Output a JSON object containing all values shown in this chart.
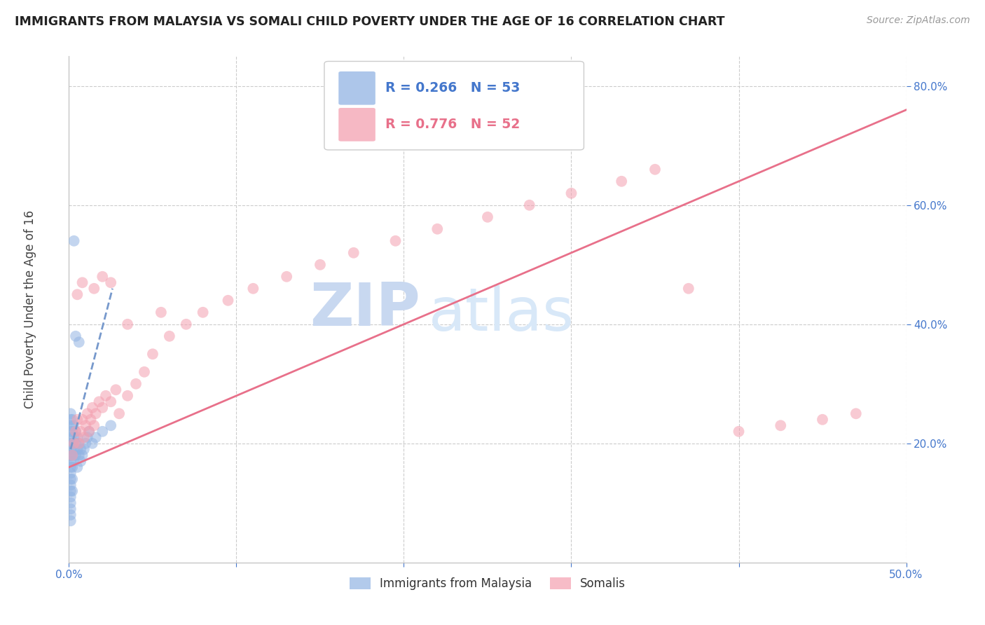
{
  "title": "IMMIGRANTS FROM MALAYSIA VS SOMALI CHILD POVERTY UNDER THE AGE OF 16 CORRELATION CHART",
  "source": "Source: ZipAtlas.com",
  "ylabel": "Child Poverty Under the Age of 16",
  "xlim": [
    0.0,
    0.5
  ],
  "ylim": [
    0.0,
    0.85
  ],
  "xticks": [
    0.0,
    0.1,
    0.2,
    0.3,
    0.4,
    0.5
  ],
  "xticklabels": [
    "0.0%",
    "",
    "",
    "",
    "",
    "50.0%"
  ],
  "yticks": [
    0.2,
    0.4,
    0.6,
    0.8
  ],
  "yticklabels": [
    "20.0%",
    "40.0%",
    "60.0%",
    "80.0%"
  ],
  "legend_r_malaysia": "R = 0.266",
  "legend_n_malaysia": "N = 53",
  "legend_r_somali": "R = 0.776",
  "legend_n_somali": "N = 52",
  "malaysia_color": "#92b4e3",
  "somali_color": "#f4a0b0",
  "malaysia_line_color": "#7799cc",
  "somali_line_color": "#e8708a",
  "grid_color": "#cccccc",
  "axis_color": "#bbbbbb",
  "tick_color": "#4477cc",
  "title_color": "#222222",
  "watermark_zip_color": "#c8d8f0",
  "watermark_atlas_color": "#d8e8f8",
  "background_color": "#ffffff",
  "malaysia_scatter_x": [
    0.001,
    0.001,
    0.001,
    0.001,
    0.001,
    0.001,
    0.001,
    0.001,
    0.001,
    0.001,
    0.001,
    0.001,
    0.001,
    0.001,
    0.001,
    0.001,
    0.001,
    0.001,
    0.001,
    0.001,
    0.002,
    0.002,
    0.002,
    0.002,
    0.002,
    0.002,
    0.002,
    0.003,
    0.003,
    0.003,
    0.003,
    0.004,
    0.004,
    0.004,
    0.005,
    0.005,
    0.005,
    0.006,
    0.006,
    0.007,
    0.007,
    0.008,
    0.009,
    0.01,
    0.011,
    0.012,
    0.014,
    0.016,
    0.02,
    0.025,
    0.003,
    0.004,
    0.006
  ],
  "malaysia_scatter_y": [
    0.15,
    0.16,
    0.17,
    0.18,
    0.18,
    0.19,
    0.2,
    0.21,
    0.22,
    0.23,
    0.24,
    0.25,
    0.14,
    0.13,
    0.12,
    0.11,
    0.1,
    0.09,
    0.08,
    0.07,
    0.16,
    0.18,
    0.2,
    0.22,
    0.24,
    0.14,
    0.12,
    0.17,
    0.19,
    0.21,
    0.23,
    0.18,
    0.2,
    0.22,
    0.16,
    0.19,
    0.21,
    0.18,
    0.2,
    0.17,
    0.19,
    0.18,
    0.19,
    0.2,
    0.21,
    0.22,
    0.2,
    0.21,
    0.22,
    0.23,
    0.54,
    0.38,
    0.37
  ],
  "somali_scatter_x": [
    0.002,
    0.003,
    0.004,
    0.005,
    0.006,
    0.007,
    0.008,
    0.009,
    0.01,
    0.011,
    0.012,
    0.013,
    0.014,
    0.015,
    0.016,
    0.018,
    0.02,
    0.022,
    0.025,
    0.028,
    0.03,
    0.035,
    0.04,
    0.045,
    0.05,
    0.06,
    0.07,
    0.08,
    0.095,
    0.11,
    0.13,
    0.15,
    0.17,
    0.195,
    0.22,
    0.25,
    0.275,
    0.3,
    0.33,
    0.35,
    0.37,
    0.4,
    0.425,
    0.45,
    0.47,
    0.005,
    0.008,
    0.015,
    0.02,
    0.025,
    0.035,
    0.055
  ],
  "somali_scatter_y": [
    0.18,
    0.2,
    0.22,
    0.24,
    0.2,
    0.22,
    0.24,
    0.21,
    0.23,
    0.25,
    0.22,
    0.24,
    0.26,
    0.23,
    0.25,
    0.27,
    0.26,
    0.28,
    0.27,
    0.29,
    0.25,
    0.28,
    0.3,
    0.32,
    0.35,
    0.38,
    0.4,
    0.42,
    0.44,
    0.46,
    0.48,
    0.5,
    0.52,
    0.54,
    0.56,
    0.58,
    0.6,
    0.62,
    0.64,
    0.66,
    0.46,
    0.22,
    0.23,
    0.24,
    0.25,
    0.45,
    0.47,
    0.46,
    0.48,
    0.47,
    0.4,
    0.42
  ],
  "malaysia_line_x": [
    0.001,
    0.026
  ],
  "malaysia_line_y": [
    0.19,
    0.46
  ],
  "somali_line_x": [
    0.0,
    0.5
  ],
  "somali_line_y": [
    0.16,
    0.76
  ]
}
